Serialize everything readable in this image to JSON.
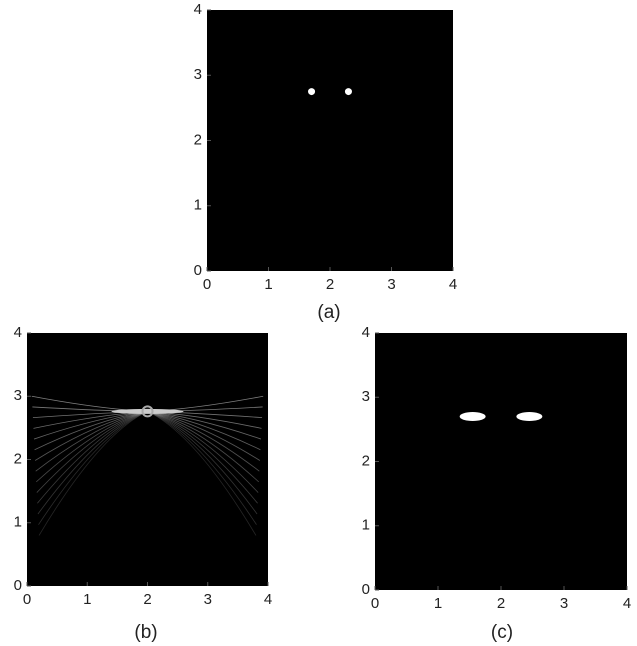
{
  "chart_data": [
    {
      "type": "scatter",
      "title": "(a)",
      "xlim": [
        0,
        4
      ],
      "ylim": [
        0,
        4
      ],
      "xticks": [
        0,
        1,
        2,
        3,
        4
      ],
      "yticks": [
        0,
        1,
        2,
        3,
        4
      ],
      "background": "#000000",
      "marker": "dot",
      "series": [
        {
          "color": "#ffffff",
          "x": [
            1.7,
            2.3
          ],
          "values": [
            2.75,
            2.75
          ]
        }
      ]
    },
    {
      "type": "image",
      "title": "(b)",
      "xlim": [
        0,
        4
      ],
      "ylim": [
        0,
        4
      ],
      "xticks": [
        0,
        1,
        2,
        3,
        4
      ],
      "yticks": [
        0,
        1,
        2,
        3,
        4
      ],
      "background": "#000000"
    },
    {
      "type": "scatter",
      "title": "(c)",
      "xlim": [
        0,
        4
      ],
      "ylim": [
        0,
        4
      ],
      "xticks": [
        0,
        1,
        2,
        3,
        4
      ],
      "yticks": [
        0,
        1,
        2,
        3,
        4
      ],
      "background": "#000000",
      "marker": "ellipse",
      "series": [
        {
          "color": "#ffffff",
          "x": [
            1.55,
            2.45
          ],
          "values": [
            2.7,
            2.7
          ]
        }
      ]
    }
  ]
}
